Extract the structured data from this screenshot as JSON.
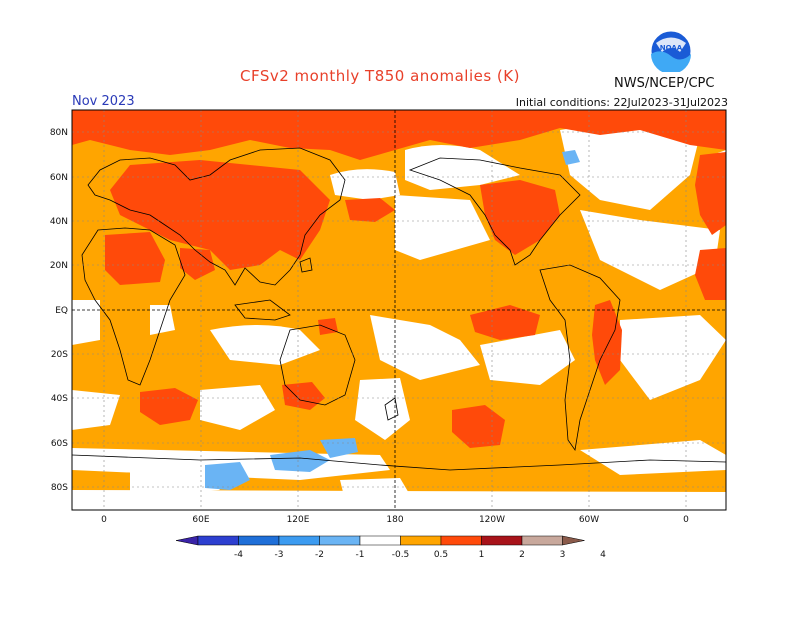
{
  "header": {
    "title": "CFSv2 monthly T850 anomalies (K)",
    "month": "Nov 2023",
    "initial_conditions": "Initial conditions: 22Jul2023-31Jul2023",
    "agency": "NWS/NCEP/CPC",
    "logo_text": "NOAA"
  },
  "map": {
    "lat_labels": [
      "80N",
      "60N",
      "40N",
      "20N",
      "EQ",
      "20S",
      "40S",
      "60S",
      "80S"
    ],
    "lon_labels": [
      "0",
      "60E",
      "120E",
      "180",
      "120W",
      "60W",
      "0"
    ]
  },
  "colorbar": {
    "labels": [
      "-4",
      "-3",
      "-2",
      "-1",
      "-0.5",
      "0.5",
      "1",
      "2",
      "3",
      "4"
    ],
    "colors": [
      "#3a23a8",
      "#2d3fd0",
      "#1f6fd8",
      "#3c9bf0",
      "#6ab4f4",
      "#ffffff",
      "#ffa500",
      "#ff4a0a",
      "#a8131a",
      "#c8a89c",
      "#8a5a4a"
    ]
  },
  "chart_data": {
    "type": "heatmap",
    "variable": "T850 anomaly",
    "units": "K",
    "contour_levels": [
      -4,
      -3,
      -2,
      -1,
      -0.5,
      0.5,
      1,
      2,
      3,
      4
    ],
    "regions": [
      {
        "area": "Arctic / high northern latitudes",
        "anomaly_range": "1 to 2"
      },
      {
        "area": "Eurasia and Arabia",
        "anomaly_range": "1 to 2"
      },
      {
        "area": "North America (west)",
        "anomaly_range": "1 to 2"
      },
      {
        "area": "Tropical Pacific and Atlantic",
        "anomaly_range": "0.5 to 1"
      },
      {
        "area": "Southern Ocean near Antarctica",
        "anomaly_range": "-1 to -0.5"
      }
    ]
  }
}
